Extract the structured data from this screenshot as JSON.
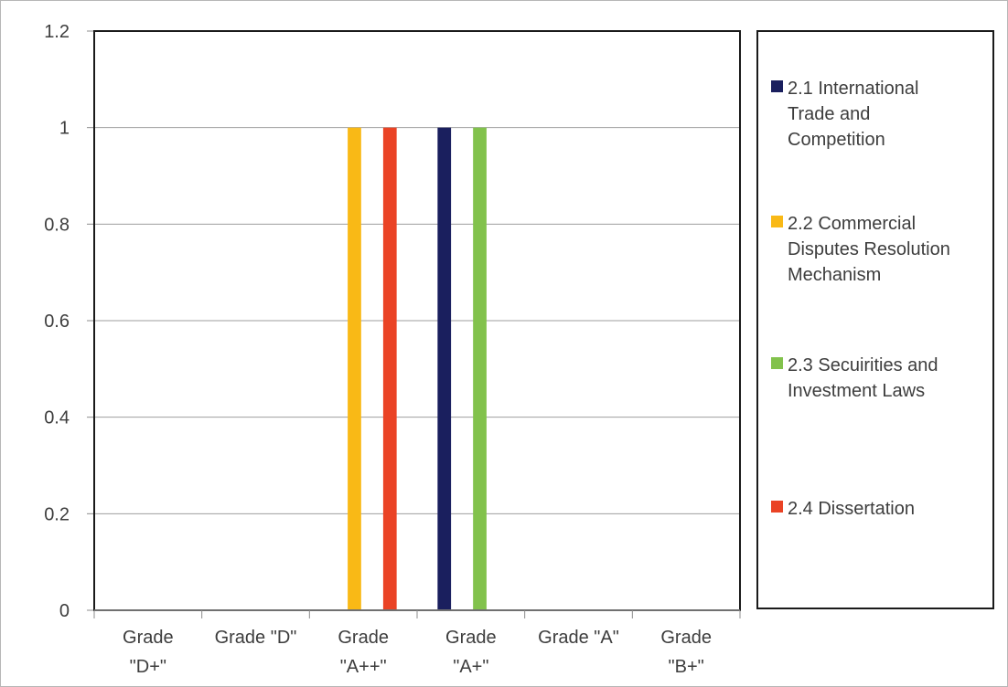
{
  "chart_data": {
    "type": "bar",
    "categories": [
      [
        "Grade",
        "\"D+\""
      ],
      [
        "Grade \"D\""
      ],
      [
        "Grade",
        "\"A++\""
      ],
      [
        "Grade",
        "\"A+\""
      ],
      [
        "Grade \"A\""
      ],
      [
        "Grade",
        "\"B+\""
      ]
    ],
    "series": [
      {
        "name": "2.1 International Trade and Competition",
        "color": "#1a1f5e",
        "values": [
          0,
          0,
          0,
          1,
          0,
          0
        ]
      },
      {
        "name": "2.2 Commercial Disputes Resolution Mechanism",
        "color": "#f9b916",
        "values": [
          0,
          0,
          1,
          0,
          0,
          0
        ]
      },
      {
        "name": "2.3 Secuirities and Investment Laws",
        "color": "#82c24c",
        "values": [
          0,
          0,
          0,
          1,
          0,
          0
        ]
      },
      {
        "name": "2.4 Dissertation",
        "color": "#ea4325",
        "values": [
          0,
          0,
          1,
          0,
          0,
          0
        ]
      }
    ],
    "ylim": [
      0,
      1.2
    ],
    "yticks": [
      "0",
      "0.2",
      "0.4",
      "0.6",
      "0.8",
      "1",
      "1.2"
    ],
    "grid": true,
    "legend_position": "right",
    "title": "",
    "xlabel": "",
    "ylabel": ""
  },
  "legend": {
    "items": [
      {
        "lines": [
          "2.1 International",
          "Trade and",
          "Competition"
        ],
        "color": "#1a1f5e"
      },
      {
        "lines": [
          "2.2 Commercial",
          "Disputes Resolution",
          "Mechanism"
        ],
        "color": "#f9b916"
      },
      {
        "lines": [
          "2.3 Secuirities and",
          "Investment Laws"
        ],
        "color": "#82c24c"
      },
      {
        "lines": [
          "2.4 Dissertation"
        ],
        "color": "#ea4325"
      }
    ]
  }
}
